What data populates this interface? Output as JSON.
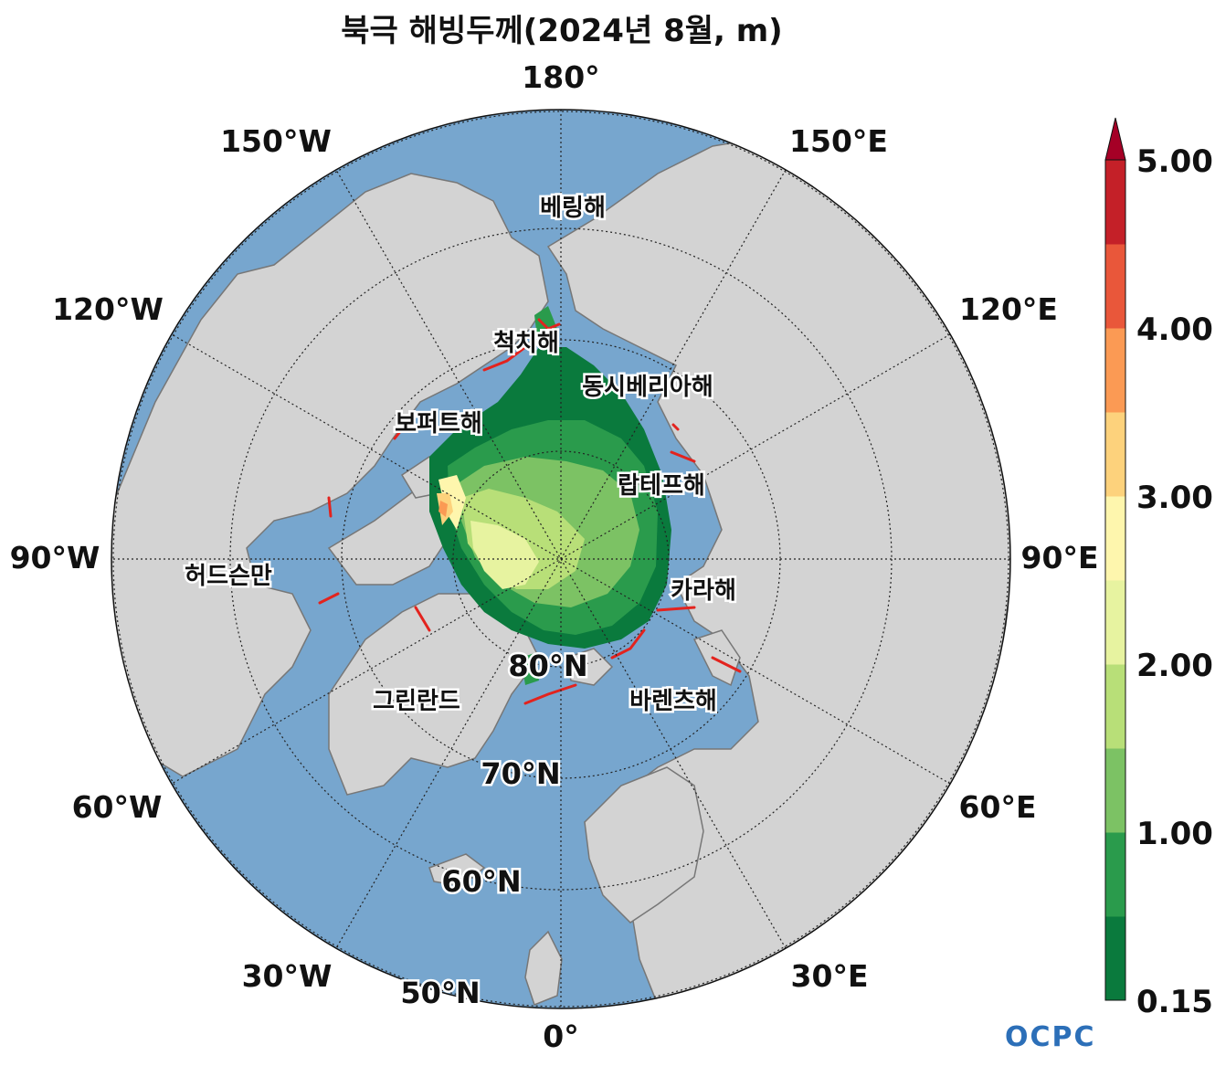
{
  "title": "북극 해빙두께(2024년 8월, m)",
  "lon_labels": [
    "180°",
    "150°E",
    "120°E",
    "90°E",
    "60°E",
    "30°E",
    "0°",
    "30°W",
    "60°W",
    "90°W",
    "120°W",
    "150°W"
  ],
  "lat_labels": [
    "80°N",
    "70°N",
    "60°N",
    "50°N"
  ],
  "sea_labels": [
    "베링해",
    "척치해",
    "동시베리아해",
    "보퍼트해",
    "랍테프해",
    "허드슨만",
    "카라해",
    "그린란드",
    "바렌츠해"
  ],
  "colorbar": {
    "tick_labels": [
      "5.00",
      "4.00",
      "3.00",
      "2.00",
      "1.00",
      "0.15"
    ],
    "levels": [
      0.15,
      0.5,
      1.0,
      1.5,
      2.0,
      2.5,
      3.0,
      3.5,
      4.0,
      4.5,
      5.0
    ],
    "colors": [
      "#0a7a3d",
      "#2a9b4c",
      "#7cc264",
      "#b8df78",
      "#e7f3a0",
      "#fef6ad",
      "#fdd27c",
      "#fb9a54",
      "#e9573a",
      "#c42028"
    ],
    "extend_color": "#a50026"
  },
  "colors": {
    "ocean": "#77a6ce",
    "land": "#d3d3d3",
    "coast": "#777777",
    "ice_edge": "#e3231e"
  },
  "logo": "OCPC"
}
